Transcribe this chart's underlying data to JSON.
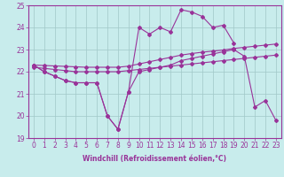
{
  "xlabel": "Windchill (Refroidissement éolien,°C)",
  "bg_color": "#c8ecec",
  "line_color": "#993399",
  "x_ticks": [
    0,
    1,
    2,
    3,
    4,
    5,
    6,
    7,
    8,
    9,
    10,
    11,
    12,
    13,
    14,
    15,
    16,
    17,
    18,
    19,
    20,
    21,
    22,
    23
  ],
  "ylim": [
    19,
    25
  ],
  "yticks": [
    19,
    20,
    21,
    22,
    23,
    24,
    25
  ],
  "series": {
    "line1": [
      22.3,
      22.0,
      21.8,
      21.6,
      21.5,
      21.5,
      21.5,
      20.0,
      19.4,
      21.1,
      24.0,
      23.7,
      24.0,
      23.8,
      24.8,
      24.7,
      24.5,
      24.0,
      24.1,
      23.3,
      null,
      null,
      null,
      null
    ],
    "line2": [
      22.3,
      22.0,
      21.8,
      21.6,
      21.5,
      21.5,
      21.5,
      20.0,
      19.4,
      21.1,
      22.0,
      22.1,
      22.2,
      22.3,
      22.5,
      22.6,
      22.7,
      22.8,
      22.9,
      23.0,
      22.7,
      20.4,
      20.7,
      19.8
    ],
    "line3": [
      22.2,
      22.15,
      22.1,
      22.05,
      22.0,
      22.0,
      22.0,
      22.0,
      22.0,
      22.05,
      22.1,
      22.15,
      22.2,
      22.25,
      22.3,
      22.35,
      22.4,
      22.45,
      22.5,
      22.55,
      22.6,
      22.65,
      22.7,
      22.75
    ],
    "line4": [
      22.3,
      22.28,
      22.26,
      22.24,
      22.22,
      22.2,
      22.2,
      22.2,
      22.2,
      22.25,
      22.35,
      22.45,
      22.55,
      22.65,
      22.75,
      22.82,
      22.88,
      22.93,
      22.98,
      23.05,
      23.1,
      23.15,
      23.2,
      23.25
    ]
  }
}
